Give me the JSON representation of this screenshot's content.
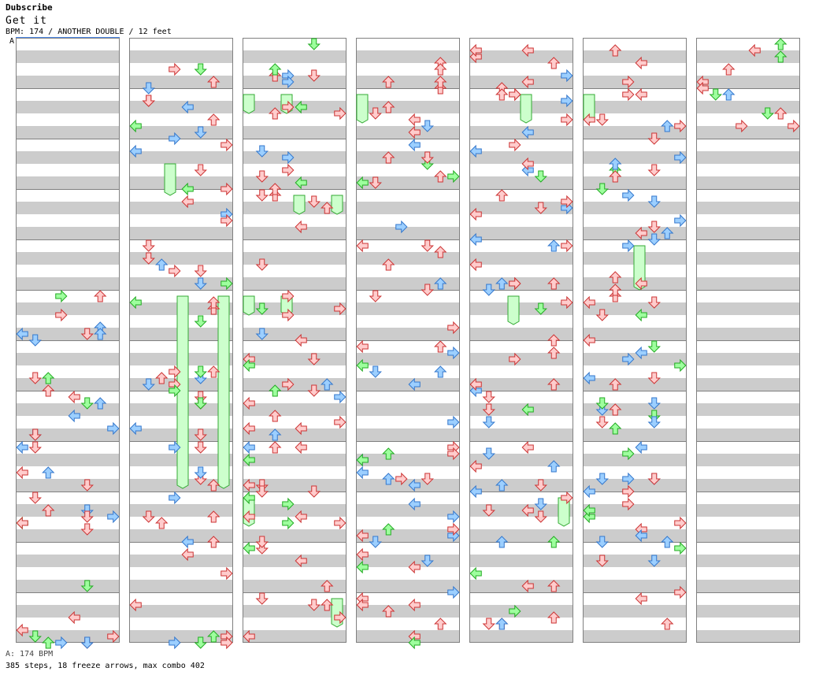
{
  "header": {
    "artist": "Dubscribe",
    "title": "Get it",
    "meta": "BPM: 174 / ANOTHER DOUBLE / 12 feet",
    "bpm_marker": "A"
  },
  "footer": {
    "bpm_legend": "A: 174 BPM",
    "stats": "385 steps, 18 freeze arrows, max combo 402"
  },
  "chart_data": {
    "type": "step-chart",
    "bpm": 174,
    "difficulty": "ANOTHER DOUBLE",
    "level": "12 feet",
    "steps": 385,
    "freeze_arrows": 18,
    "max_combo": 402,
    "columns": 7,
    "measures_per_column": 12,
    "note_colors": {
      "red": "#ffcccc",
      "blue": "#9ccfff",
      "green": "#9eff9e"
    }
  }
}
